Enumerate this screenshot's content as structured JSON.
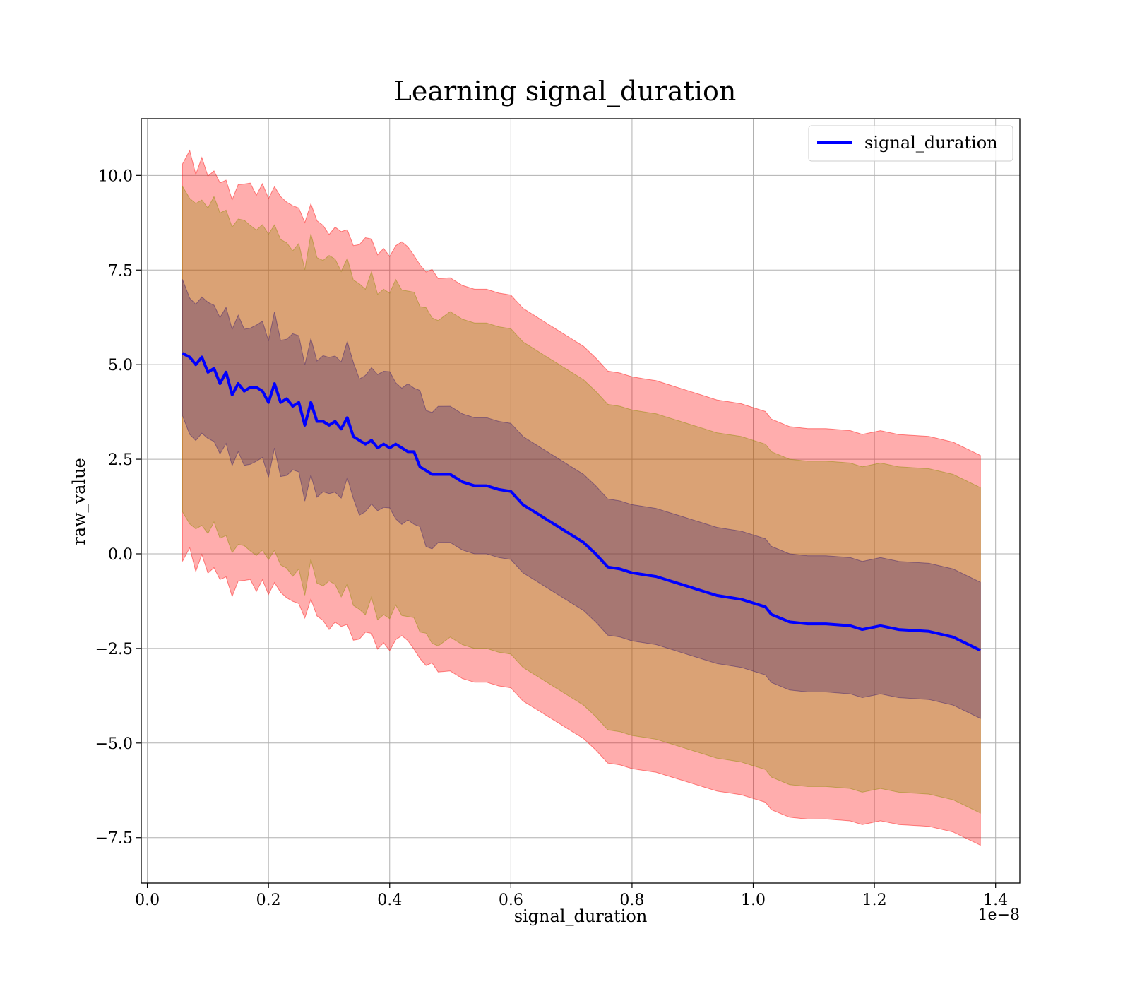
{
  "chart_data": {
    "type": "line",
    "title": "Learning signal_duration",
    "xlabel": "signal_duration",
    "ylabel": "raw_value",
    "x_offset_label": "1e−8",
    "xlim": [
      -0.01,
      1.44
    ],
    "ylim": [
      -8.7,
      11.5
    ],
    "x_ticks": [
      0.0,
      0.2,
      0.4,
      0.6,
      0.8,
      1.0,
      1.2,
      1.4
    ],
    "x_tick_labels": [
      "0.0",
      "0.2",
      "0.4",
      "0.6",
      "0.8",
      "1.0",
      "1.2",
      "1.4"
    ],
    "y_ticks": [
      -7.5,
      -5.0,
      -2.5,
      0.0,
      2.5,
      5.0,
      7.5,
      10.0
    ],
    "y_tick_labels": [
      "−7.5",
      "−5.0",
      "−2.5",
      "0.0",
      "2.5",
      "5.0",
      "7.5",
      "10.0"
    ],
    "grid": true,
    "legend_position": "top-right",
    "series": [
      {
        "name": "signal_duration",
        "color": "#0000ff",
        "x": [
          0.058,
          0.07,
          0.08,
          0.09,
          0.1,
          0.11,
          0.12,
          0.13,
          0.14,
          0.15,
          0.16,
          0.17,
          0.18,
          0.19,
          0.2,
          0.21,
          0.22,
          0.23,
          0.24,
          0.25,
          0.26,
          0.27,
          0.28,
          0.29,
          0.3,
          0.31,
          0.32,
          0.33,
          0.34,
          0.35,
          0.36,
          0.37,
          0.38,
          0.39,
          0.4,
          0.41,
          0.42,
          0.43,
          0.44,
          0.45,
          0.46,
          0.47,
          0.48,
          0.5,
          0.52,
          0.54,
          0.56,
          0.58,
          0.6,
          0.62,
          0.64,
          0.66,
          0.68,
          0.7,
          0.72,
          0.74,
          0.76,
          0.78,
          0.8,
          0.82,
          0.84,
          0.86,
          0.88,
          0.9,
          0.92,
          0.94,
          0.96,
          0.98,
          1.0,
          1.02,
          1.03,
          1.06,
          1.09,
          1.12,
          1.16,
          1.18,
          1.21,
          1.24,
          1.29,
          1.33,
          1.375
        ],
        "y": [
          5.3,
          5.2,
          5.0,
          5.2,
          4.8,
          4.9,
          4.5,
          4.8,
          4.2,
          4.5,
          4.3,
          4.4,
          4.4,
          4.3,
          4.0,
          4.5,
          4.0,
          4.1,
          3.9,
          4.0,
          3.4,
          4.0,
          3.5,
          3.5,
          3.4,
          3.5,
          3.3,
          3.6,
          3.1,
          3.0,
          2.9,
          3.0,
          2.8,
          2.9,
          2.8,
          2.9,
          2.8,
          2.7,
          2.7,
          2.3,
          2.2,
          2.1,
          2.1,
          2.1,
          1.9,
          1.8,
          1.8,
          1.7,
          1.65,
          1.3,
          1.1,
          0.9,
          0.7,
          0.5,
          0.3,
          0.0,
          -0.35,
          -0.4,
          -0.5,
          -0.55,
          -0.6,
          -0.7,
          -0.8,
          -0.9,
          -1.0,
          -1.1,
          -1.15,
          -1.2,
          -1.3,
          -1.4,
          -1.6,
          -1.8,
          -1.85,
          -1.85,
          -1.9,
          -2.0,
          -1.9,
          -2.0,
          -2.05,
          -2.2,
          -2.55
        ]
      }
    ],
    "bands": [
      {
        "color": "#ff0000",
        "opacity": 0.32,
        "halfwidth_start": 5.25,
        "halfwidth_end": 5.15
      },
      {
        "color": "#8b8b00",
        "opacity": 0.32,
        "halfwidth_start": 4.3,
        "halfwidth_end": 4.3
      },
      {
        "color": "#3a1c6e",
        "opacity": 0.32,
        "halfwidth_start": 1.8,
        "halfwidth_end": 1.8
      }
    ]
  }
}
